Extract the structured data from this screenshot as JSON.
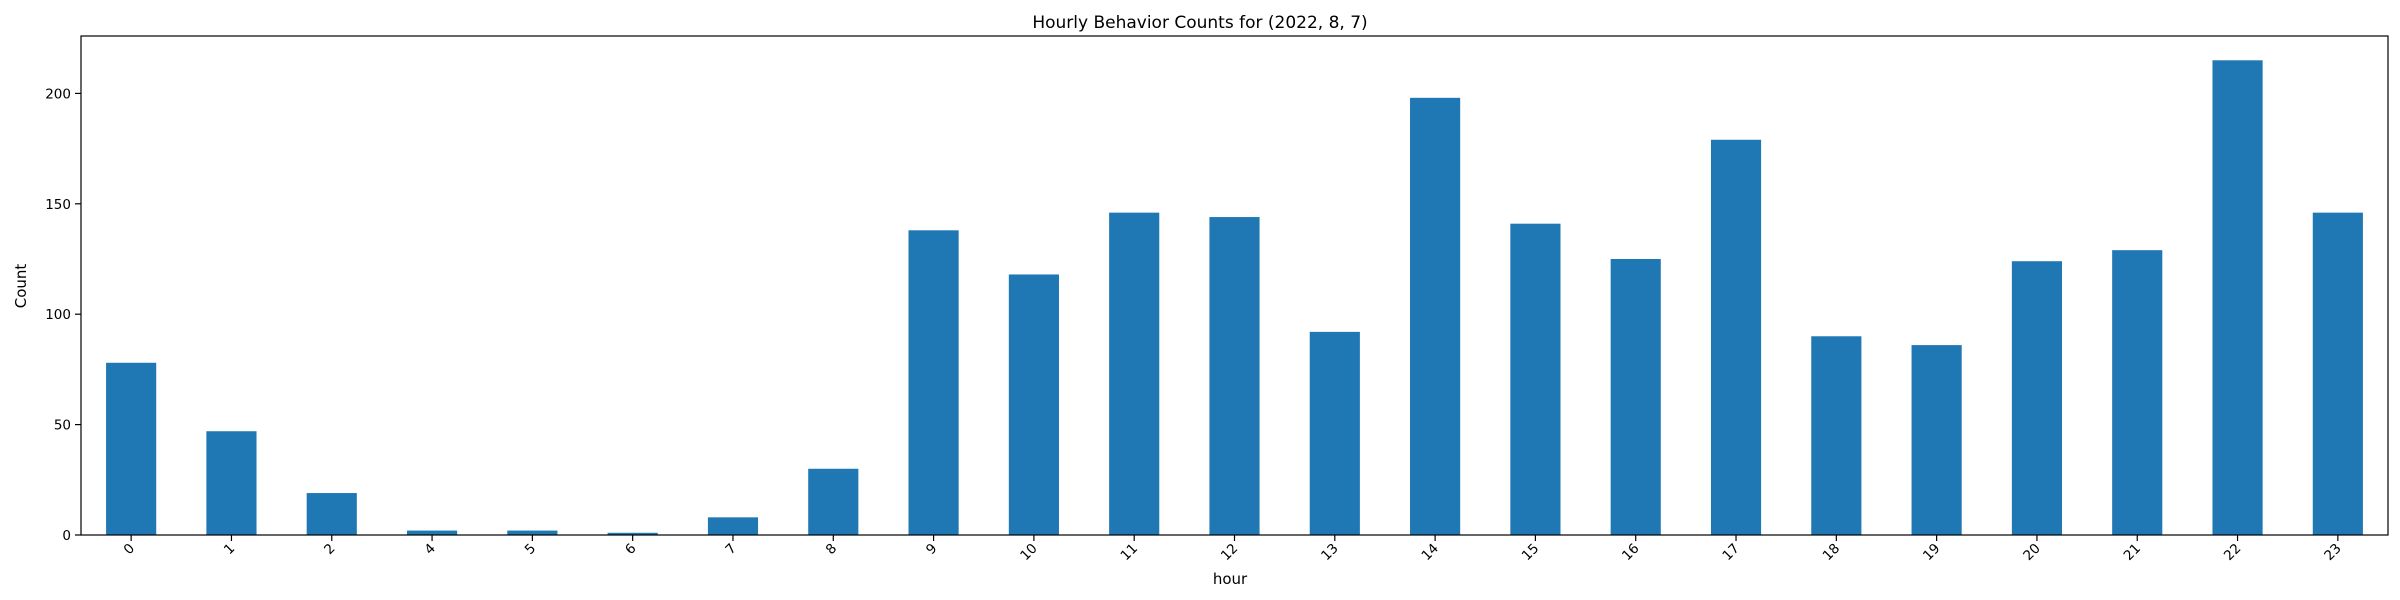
{
  "chart_data": {
    "type": "bar",
    "title": "Hourly Behavior Counts for (2022, 8, 7)",
    "xlabel": "hour",
    "ylabel": "Count",
    "categories": [
      "0",
      "1",
      "2",
      "4",
      "5",
      "6",
      "7",
      "8",
      "9",
      "10",
      "11",
      "12",
      "13",
      "14",
      "15",
      "16",
      "17",
      "18",
      "19",
      "20",
      "21",
      "22",
      "23"
    ],
    "values": [
      78,
      47,
      19,
      2,
      2,
      1,
      8,
      30,
      138,
      118,
      146,
      144,
      92,
      198,
      141,
      125,
      179,
      90,
      86,
      124,
      129,
      215,
      146
    ],
    "ylim": [
      0,
      226
    ],
    "yticks": [
      0,
      50,
      100,
      150,
      200
    ],
    "xtick_rotation_deg": 45,
    "bar_color": "#1f77b4",
    "grid": false,
    "legend": "none"
  }
}
